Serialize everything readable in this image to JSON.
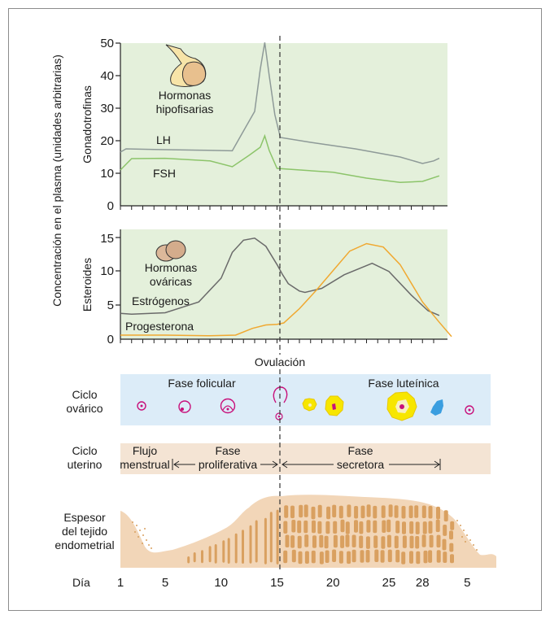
{
  "colors": {
    "panel_green": "#e4f0db",
    "ovarian_band": "#dcecf8",
    "uterine_band": "#f4e4d4",
    "lh_line": "#8e9a98",
    "fsh_line": "#8cc46a",
    "estrogen_line": "#6a6a6a",
    "progesterone_line": "#f0a830",
    "endometrium_fill": "#f2d6b8",
    "endometrium_glands": "#d9a060",
    "gland_tissue": "#f0c8a0",
    "follicle_magenta": "#c8107a",
    "corpus_yellow": "#f7e600",
    "albicans_blue": "#3a9ee0"
  },
  "y_axis_outer_label": "Concentración en el plasma (unidades arbitrarias)",
  "ovulation_label": "Ovulación",
  "chart_data": [
    {
      "type": "line",
      "ylabel": "Gonadotrofinas",
      "ylim": [
        0,
        50
      ],
      "yticks": [
        "50",
        "40",
        "30",
        "20",
        "10",
        "0"
      ],
      "grid": false,
      "legend": "inline labels",
      "annotation": {
        "text": [
          "Hormonas",
          "hipofisarias"
        ],
        "icon": "pituitary-gland-icon"
      },
      "series": [
        {
          "name": "LH",
          "points": [
            [
              1,
              16.5
            ],
            [
              1.5,
              17.5
            ],
            [
              4,
              17.3
            ],
            [
              8,
              17.1
            ],
            [
              11,
              16.9
            ],
            [
              12,
              23
            ],
            [
              13,
              29
            ],
            [
              13.5,
              42
            ],
            [
              13.9,
              50.2
            ],
            [
              14.3,
              40
            ],
            [
              14.8,
              28
            ],
            [
              15.3,
              21
            ],
            [
              18,
              19.5
            ],
            [
              22,
              17.5
            ],
            [
              26,
              15
            ],
            [
              28,
              13
            ],
            [
              29,
              13.8
            ],
            [
              29.5,
              14.6
            ]
          ]
        },
        {
          "name": "FSH",
          "points": [
            [
              1,
              11
            ],
            [
              2,
              14.5
            ],
            [
              5,
              14.6
            ],
            [
              9,
              13.8
            ],
            [
              11,
              12
            ],
            [
              12.5,
              15.5
            ],
            [
              13.5,
              18
            ],
            [
              13.9,
              21.5
            ],
            [
              14.3,
              17
            ],
            [
              15,
              11.5
            ],
            [
              20,
              10.3
            ],
            [
              23,
              8.5
            ],
            [
              26,
              7.2
            ],
            [
              28,
              7.5
            ],
            [
              29.5,
              9.2
            ]
          ]
        }
      ]
    },
    {
      "type": "line",
      "ylabel": "Esteroides",
      "ylim": [
        0,
        16
      ],
      "yticks": [
        "15",
        "10",
        "5",
        "0"
      ],
      "grid": false,
      "legend": "inline labels",
      "annotation": {
        "text": [
          "Hormonas",
          "ováricas"
        ],
        "icon": "ovaries-icon"
      },
      "series": [
        {
          "name": "Estrógenos",
          "points": [
            [
              1,
              3.8
            ],
            [
              2,
              3.7
            ],
            [
              5,
              3.9
            ],
            [
              8,
              5.5
            ],
            [
              10,
              9
            ],
            [
              11,
              12.8
            ],
            [
              12,
              14.6
            ],
            [
              13,
              14.9
            ],
            [
              14,
              13.7
            ],
            [
              15,
              11
            ],
            [
              15.5,
              9.5
            ],
            [
              16,
              8.2
            ],
            [
              17,
              7.1
            ],
            [
              17.5,
              6.9
            ],
            [
              19,
              7.5
            ],
            [
              21,
              9.5
            ],
            [
              23.5,
              11.2
            ],
            [
              25,
              10
            ],
            [
              27,
              6.5
            ],
            [
              28.5,
              4.2
            ],
            [
              29.5,
              3.5
            ]
          ]
        },
        {
          "name": "Progesterona",
          "points": [
            [
              1,
              0.6
            ],
            [
              5,
              0.6
            ],
            [
              9,
              0.5
            ],
            [
              11.3,
              0.6
            ],
            [
              12.8,
              1.6
            ],
            [
              14,
              2.1
            ],
            [
              15,
              2.2
            ],
            [
              15.6,
              2.4
            ],
            [
              17,
              4.5
            ],
            [
              18.5,
              7.2
            ],
            [
              20,
              10.1
            ],
            [
              21.5,
              13
            ],
            [
              23,
              14.1
            ],
            [
              24.5,
              13.6
            ],
            [
              26,
              11
            ],
            [
              28,
              5.5
            ],
            [
              29.5,
              2.5
            ],
            [
              30.6,
              0.4
            ]
          ]
        }
      ]
    }
  ],
  "ovarian_cycle": {
    "label": [
      "Ciclo",
      "ovárico"
    ],
    "phase_follicular": "Fase folicular",
    "phase_luteal": "Fase luteínica",
    "stages": [
      "primary-follicle-icon",
      "secondary-follicle-icon",
      "antral-follicle-icon",
      "ovulation-oocyte-icon",
      "early-corpus-luteum-icon",
      "corpus-luteum-icon",
      "mature-corpus-luteum-icon",
      "corpus-albicans-icon",
      "new-follicle-icon"
    ]
  },
  "uterine_cycle": {
    "label": [
      "Ciclo",
      "uterino"
    ],
    "menstrual": [
      "Flujo",
      "menstrual"
    ],
    "proliferative": [
      "Fase",
      "proliferativa"
    ],
    "secretory": [
      "Fase",
      "secretora"
    ]
  },
  "endometrium": {
    "label": [
      "Espesor",
      "del tejido",
      "endometrial"
    ]
  },
  "day_axis": {
    "label": "Día",
    "ticks": [
      {
        "day": 1,
        "text": "1"
      },
      {
        "day": 5,
        "text": "5"
      },
      {
        "day": 10,
        "text": "10"
      },
      {
        "day": 15,
        "text": "15"
      },
      {
        "day": 20,
        "text": "20"
      },
      {
        "day": 25,
        "text": "25"
      },
      {
        "day": 28,
        "text": "28"
      },
      {
        "day": 32,
        "text": "5"
      }
    ]
  }
}
